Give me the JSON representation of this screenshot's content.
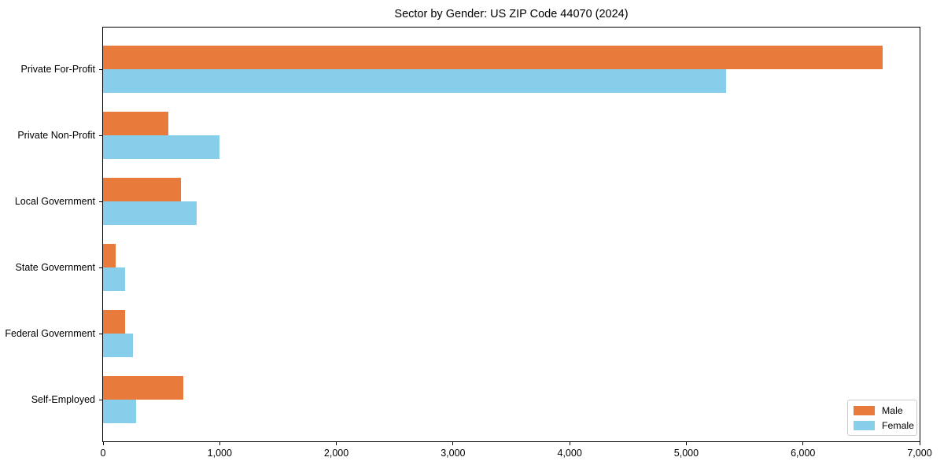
{
  "chart_data": {
    "type": "bar",
    "orientation": "horizontal",
    "title": "Sector by Gender: US ZIP Code 44070 (2024)",
    "categories": [
      "Private For-Profit",
      "Private Non-Profit",
      "Local Government",
      "State Government",
      "Federal Government",
      "Self-Employed"
    ],
    "series": [
      {
        "name": "Male",
        "color": "#E87A3C",
        "values": [
          6680,
          560,
          670,
          105,
          190,
          685
        ]
      },
      {
        "name": "Female",
        "color": "#87CEEB",
        "values": [
          5340,
          1000,
          805,
          190,
          255,
          280
        ]
      }
    ],
    "xlim": [
      0,
      7000
    ],
    "x_ticks": [
      0,
      1000,
      2000,
      3000,
      4000,
      5000,
      6000,
      7000
    ],
    "x_tick_labels": [
      "0",
      "1,000",
      "2,000",
      "3,000",
      "4,000",
      "5,000",
      "6,000",
      "7,000"
    ],
    "grid": false,
    "legend_position": "lower right",
    "axis_color": "#000000",
    "background_color": "#ffffff"
  }
}
